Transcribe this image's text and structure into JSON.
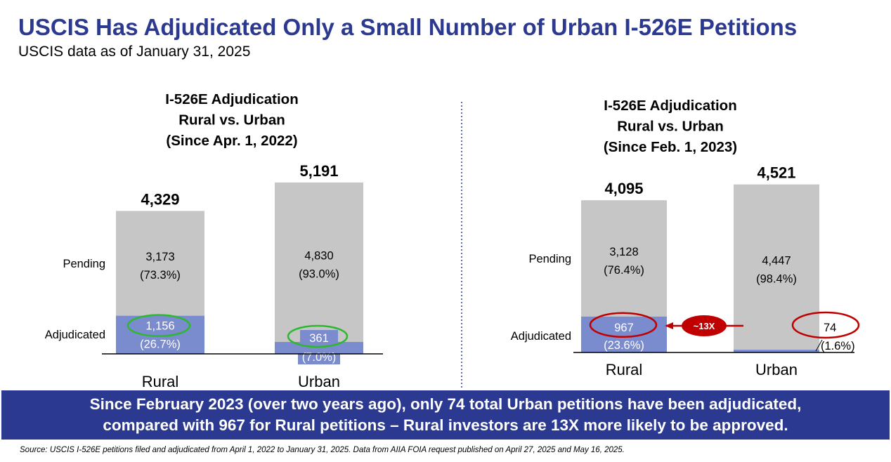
{
  "title": "USCIS Has Adjudicated Only a Small Number of Urban I-526E Petitions",
  "subtitle": "USCIS data as of January 31, 2025",
  "colors": {
    "pending": "#c6c6c6",
    "adjudicated": "#7a8bce",
    "highlight_green": "#2eb82e",
    "highlight_red": "#c00000",
    "banner": "#2b3990"
  },
  "chart_data": [
    {
      "type": "bar",
      "stacked": true,
      "title": [
        "I-526E Adjudication",
        "Rural vs. Urban",
        "(Since Apr. 1, 2022)"
      ],
      "categories": [
        "Rural",
        "Urban"
      ],
      "totals": [
        "4,329",
        "5,191"
      ],
      "series": [
        {
          "name": "Adjudicated",
          "values": [
            1156,
            361
          ],
          "labels": [
            "1,156",
            "361"
          ],
          "percents": [
            "(26.7%)",
            "(7.0%)"
          ]
        },
        {
          "name": "Pending",
          "values": [
            3173,
            4830
          ],
          "labels": [
            "3,173",
            "4,830"
          ],
          "percents": [
            "(73.3%)",
            "(93.0%)"
          ]
        }
      ],
      "highlight": "green ovals around adjudicated labels",
      "ylim": [
        0,
        5191
      ]
    },
    {
      "type": "bar",
      "stacked": true,
      "title": [
        "I-526E Adjudication",
        "Rural vs. Urban",
        "(Since Feb. 1, 2023)"
      ],
      "categories": [
        "Rural",
        "Urban"
      ],
      "totals": [
        "4,095",
        "4,521"
      ],
      "series": [
        {
          "name": "Adjudicated",
          "values": [
            967,
            74
          ],
          "labels": [
            "967",
            "74"
          ],
          "percents": [
            "(23.6%)",
            "(1.6%)"
          ]
        },
        {
          "name": "Pending",
          "values": [
            3128,
            4447
          ],
          "labels": [
            "3,128",
            "4,447"
          ],
          "percents": [
            "(76.4%)",
            "(98.4%)"
          ]
        }
      ],
      "highlight": "red ovals with arrow",
      "comparison_label": "~13X",
      "ylim": [
        0,
        4521
      ]
    }
  ],
  "banner": {
    "line1": "Since February 2023 (over two years ago), only 74 total Urban petitions have been adjudicated,",
    "line2": "compared with 967 for Rural petitions – Rural investors are 13X more likely to be approved."
  },
  "source": "Source: USCIS I-526E petitions filed and adjudicated from April 1, 2022 to January 31, 2025. Data from AIIA FOIA request published on April 27, 2025 and May 16, 2025."
}
